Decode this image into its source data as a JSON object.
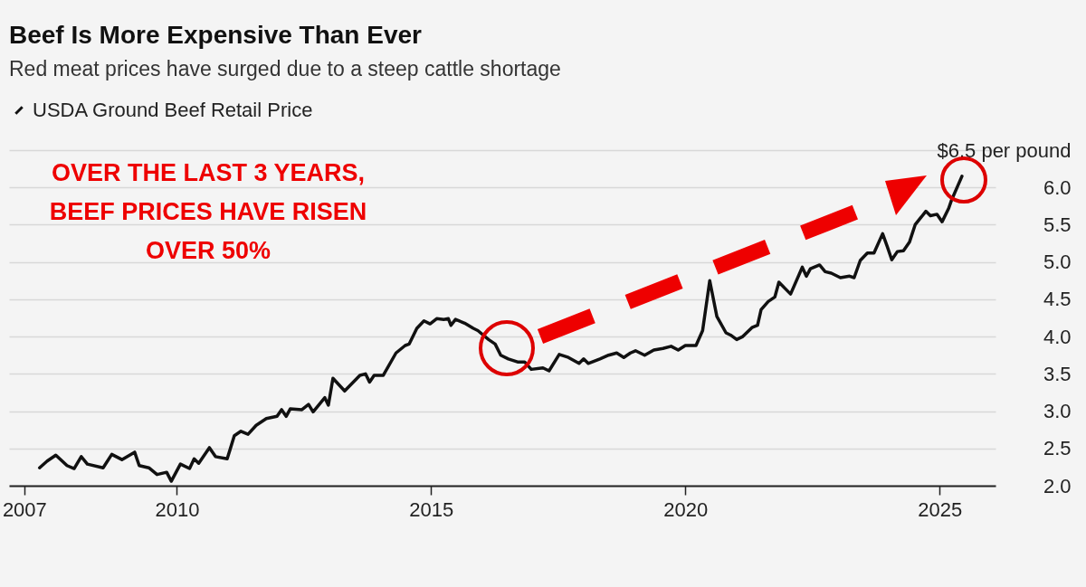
{
  "chart_data": {
    "type": "line",
    "title": "Beef Is More Expensive Than Ever",
    "subtitle": "Red meat prices have surged due to a steep cattle shortage",
    "annotations": [
      "OVER THE LAST 3 YEARS, BEEF PRICES HAVE RISEN OVER 50%"
    ],
    "x": [
      2007.3,
      2007.45,
      2007.62,
      2007.84,
      2007.98,
      2008.12,
      2008.24,
      2008.55,
      2008.72,
      2008.92,
      2009.17,
      2009.26,
      2009.45,
      2009.61,
      2009.8,
      2009.89,
      2010.07,
      2010.25,
      2010.34,
      2010.43,
      2010.64,
      2010.76,
      2010.99,
      2011.13,
      2011.26,
      2011.4,
      2011.56,
      2011.76,
      2011.97,
      2012.06,
      2012.15,
      2012.23,
      2012.46,
      2012.59,
      2012.68,
      2012.91,
      2012.98,
      2013.07,
      2013.3,
      2013.6,
      2013.71,
      2013.79,
      2013.88,
      2014.06,
      2014.31,
      2014.49,
      2014.57,
      2014.72,
      2014.86,
      2014.98,
      2015.11,
      2015.25,
      2015.34,
      2015.39,
      2015.48,
      2015.66,
      2015.83,
      2015.92,
      2016.13,
      2016.26,
      2016.37,
      2016.52,
      2016.7,
      2016.84,
      2016.97,
      2017.2,
      2017.32,
      2017.52,
      2017.7,
      2017.91,
      2018.0,
      2018.09,
      2018.32,
      2018.49,
      2018.65,
      2018.79,
      2018.92,
      2019.02,
      2019.2,
      2019.38,
      2019.56,
      2019.72,
      2019.86,
      2020.0,
      2020.21,
      2020.34,
      2020.48,
      2020.62,
      2020.8,
      2020.89,
      2021.01,
      2021.13,
      2021.31,
      2021.42,
      2021.49,
      2021.63,
      2021.76,
      2021.84,
      2022.07,
      2022.3,
      2022.38,
      2022.46,
      2022.64,
      2022.75,
      2022.87,
      2023.05,
      2023.23,
      2023.32,
      2023.44,
      2023.58,
      2023.71,
      2023.88,
      2023.97,
      2024.06,
      2024.17,
      2024.29,
      2024.41,
      2024.52,
      2024.73,
      2024.82,
      2024.95,
      2025.05,
      2025.18,
      2025.23,
      2025.44
    ],
    "series": [
      {
        "name": "USDA Ground Beef Retail Price",
        "color": "#111111",
        "values": [
          2.24,
          2.33,
          2.41,
          2.27,
          2.23,
          2.39,
          2.29,
          2.24,
          2.42,
          2.35,
          2.45,
          2.27,
          2.24,
          2.15,
          2.18,
          2.06,
          2.29,
          2.23,
          2.36,
          2.3,
          2.51,
          2.39,
          2.36,
          2.67,
          2.73,
          2.69,
          2.81,
          2.9,
          2.93,
          3.02,
          2.93,
          3.03,
          3.02,
          3.09,
          2.99,
          3.18,
          3.08,
          3.44,
          3.27,
          3.48,
          3.5,
          3.39,
          3.48,
          3.48,
          3.78,
          3.88,
          3.9,
          4.11,
          4.21,
          4.17,
          4.24,
          4.23,
          4.24,
          4.15,
          4.23,
          4.18,
          4.11,
          4.08,
          3.96,
          3.9,
          3.75,
          3.7,
          3.66,
          3.66,
          3.56,
          3.58,
          3.54,
          3.76,
          3.72,
          3.64,
          3.7,
          3.64,
          3.7,
          3.75,
          3.78,
          3.72,
          3.78,
          3.81,
          3.75,
          3.82,
          3.84,
          3.87,
          3.82,
          3.88,
          3.88,
          4.08,
          4.75,
          4.27,
          4.05,
          4.02,
          3.96,
          4.0,
          4.12,
          4.15,
          4.36,
          4.47,
          4.53,
          4.73,
          4.57,
          4.93,
          4.81,
          4.91,
          4.96,
          4.87,
          4.85,
          4.79,
          4.81,
          4.79,
          5.02,
          5.12,
          5.12,
          5.38,
          5.21,
          5.03,
          5.14,
          5.15,
          5.27,
          5.5,
          5.68,
          5.62,
          5.64,
          5.54,
          5.72,
          5.82,
          6.15
        ]
      }
    ],
    "xlim": [
      2006.7,
      2026.1
    ],
    "xticks": [
      2007,
      2010,
      2015,
      2020,
      2025
    ],
    "ylim": [
      2,
      6.5
    ],
    "yticks": [
      {
        "value": 2,
        "label": "2.0"
      },
      2.5,
      {
        "value": 3,
        "label": "3.0"
      },
      3.5,
      {
        "value": 4,
        "label": "4.0"
      },
      4.5,
      {
        "value": 5,
        "label": "5.0"
      },
      5.5,
      {
        "value": 6,
        "label": "6.0"
      },
      {
        "value": 6.5,
        "label": "$6.5 per pound"
      }
    ],
    "grid": "y",
    "legend": "top left",
    "marker": "none",
    "line_style": "solid"
  }
}
